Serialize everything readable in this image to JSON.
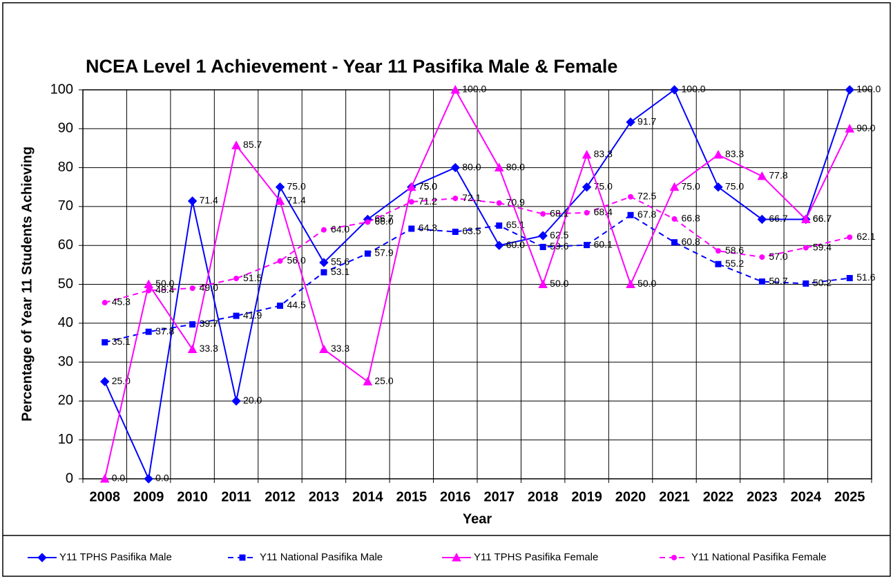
{
  "chart_data": {
    "type": "line",
    "title": "NCEA Level 1 Achievement - Year 11 Pasifika Male & Female",
    "x_label": "Year",
    "y_label": "Percentage of Year 11 Students Achieving",
    "categories": [
      "2008",
      "2009",
      "2010",
      "2011",
      "2012",
      "2013",
      "2014",
      "2015",
      "2016",
      "2017",
      "2018",
      "2019",
      "2020",
      "2021",
      "2022",
      "2023",
      "2024",
      "2025"
    ],
    "ylim": [
      0,
      100
    ],
    "yticks": [
      0,
      10,
      20,
      30,
      40,
      50,
      60,
      70,
      80,
      90,
      100
    ],
    "grid": true,
    "legend": "bottom",
    "series": [
      {
        "name": "Y11 TPHS Pasifika Male",
        "color": "#0000ff",
        "dashed": false,
        "marker": "diamond",
        "values": [
          25,
          0,
          71.4,
          20,
          75,
          55.6,
          66.7,
          75,
          80,
          60,
          62.5,
          75,
          91.7,
          100,
          75,
          66.7,
          66.7,
          100
        ],
        "value_labels": [
          "25.0",
          "0.0",
          "71.4",
          "20.0",
          "75.0",
          "55.6",
          "66.7",
          "75.0",
          "80.0",
          "60.0",
          "62.5",
          "75.0",
          "91.7",
          "100.0",
          "75.0",
          "66.7",
          "66.7",
          "100.0"
        ]
      },
      {
        "name": "Y11 National Pasifika Male",
        "color": "#0000ff",
        "dashed": true,
        "marker": "square",
        "values": [
          35.1,
          37.8,
          39.7,
          41.9,
          44.5,
          53.1,
          57.9,
          64.3,
          63.5,
          65.1,
          59.6,
          60.1,
          67.8,
          60.8,
          55.2,
          50.7,
          50.2,
          51.6
        ],
        "value_labels": [
          "35.1",
          "37.8",
          "39.7",
          "41.9",
          "44.5",
          "53.1",
          "57.9",
          "64.3",
          "63.5",
          "65.1",
          "59.6",
          "60.1",
          "67.8",
          "60.8",
          "55.2",
          "50.7",
          "50.2",
          "51.6"
        ]
      },
      {
        "name": "Y11 TPHS Pasifika Female",
        "color": "#ff00ff",
        "dashed": false,
        "marker": "triangle",
        "values": [
          0,
          50,
          33.3,
          85.7,
          71.4,
          33.3,
          25,
          75,
          100,
          80,
          50,
          83.3,
          50,
          75,
          83.3,
          77.8,
          66.7,
          90
        ],
        "value_labels": [
          "0.0",
          "50.0",
          "33.3",
          "85.7",
          "71.4",
          "33.3",
          "25.0",
          "75.0",
          "100.0",
          "80.0",
          "50.0",
          "83.3",
          "50.0",
          "75.0",
          "83.3",
          "77.8",
          "66.7",
          "90.0"
        ]
      },
      {
        "name": "Y11 National Pasifika Female",
        "color": "#ff00ff",
        "dashed": true,
        "marker": "circle",
        "values": [
          45.3,
          48.4,
          49,
          51.5,
          56,
          64,
          66,
          71.2,
          72.1,
          70.9,
          68.1,
          68.4,
          72.5,
          66.8,
          58.6,
          57,
          59.4,
          62.1
        ],
        "value_labels": [
          "45.3",
          "48.4",
          "49.0",
          "51.5",
          "56.0",
          "64.0",
          "66.0",
          "71.2",
          "72.1",
          "70.9",
          "68.1",
          "68.4",
          "72.5",
          "66.8",
          "58.6",
          "57.0",
          "59.4",
          "62.1"
        ]
      }
    ]
  }
}
